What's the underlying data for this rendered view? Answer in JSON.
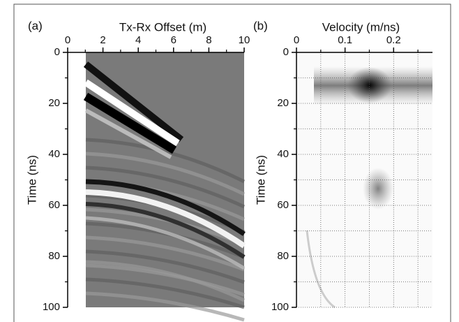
{
  "chart_data": [
    {
      "type": "image",
      "panel": "(a)",
      "x_label": "Tx-Rx Offset (m)",
      "y_label": "Time (ns)",
      "xlim": [
        0,
        10
      ],
      "xticks": [
        0,
        2,
        4,
        6,
        8,
        10
      ],
      "xminor": [
        1,
        3,
        5,
        7,
        9
      ],
      "ylim": [
        0,
        100
      ],
      "yticks": [
        0,
        20,
        40,
        60,
        80,
        100
      ],
      "yminor": [
        10,
        30,
        50,
        70,
        90
      ],
      "grid": false
    },
    {
      "type": "semblance",
      "panel": "(b)",
      "x_label": "Velocity (m/ns)",
      "y_label": "Time (ns)",
      "xlim": [
        0,
        0.28
      ],
      "xticks": [
        0,
        0.1,
        0.2
      ],
      "xminor": [
        0.05,
        0.15,
        0.25
      ],
      "ylim": [
        0,
        100
      ],
      "yticks": [
        0,
        20,
        40,
        60,
        80,
        100
      ],
      "yminor": [
        10,
        30,
        50,
        70,
        90
      ],
      "grid": true
    }
  ]
}
